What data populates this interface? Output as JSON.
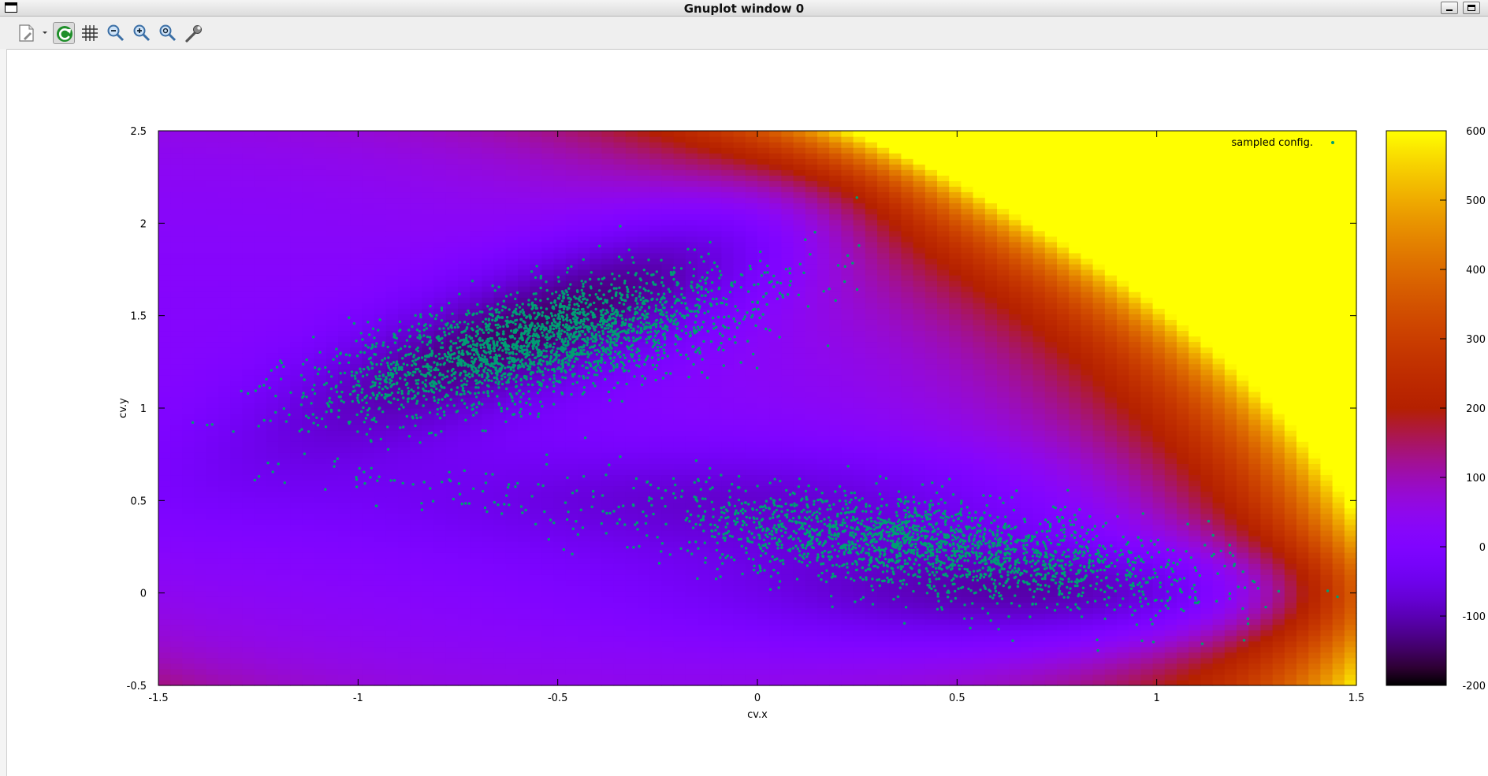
{
  "window": {
    "title": "Gnuplot window 0"
  },
  "toolbar": {
    "items": [
      {
        "name": "export-icon"
      },
      {
        "name": "replot-icon"
      },
      {
        "name": "grid-icon"
      },
      {
        "name": "zoom-out-icon"
      },
      {
        "name": "zoom-in-icon"
      },
      {
        "name": "zoom-autoscale-icon"
      },
      {
        "name": "settings-wrench-icon"
      }
    ]
  },
  "colors": {
    "point": "#009e73",
    "palette_note": "gnuplot default heat palette (black-red-orange-yellow-white)"
  },
  "chart_data": {
    "type": "heatmap",
    "overlay_type": "scatter",
    "xlabel": "cv.x",
    "ylabel": "cv.y",
    "xlim": [
      -1.5,
      1.5
    ],
    "ylim": [
      -0.5,
      2.5
    ],
    "xticks": [
      "-1.5",
      "-1",
      "-0.5",
      "0",
      "0.5",
      "1",
      "1.5"
    ],
    "yticks": [
      "-0.5",
      "0",
      "0.5",
      "1",
      "1.5",
      "2",
      "2.5"
    ],
    "colorbar": {
      "range": [
        -200,
        600
      ],
      "ticks": [
        "-200",
        "-100",
        "0",
        "100",
        "200",
        "300",
        "400",
        "500",
        "600"
      ]
    },
    "legend": {
      "label": "sampled config.",
      "position": "top-right"
    },
    "grid": false,
    "heatmap_resolution": [
      100,
      100
    ],
    "field": "Mueller-Brown-like potential energy surface with minima near (-0.55, 1.45), (0.62, 0.03) and (-0.05, 0.47)",
    "scatter_clusters": [
      {
        "center": [
          -0.55,
          1.35
        ],
        "spread": [
          0.3,
          0.13
        ],
        "rotation_deg": 30,
        "count": 2600
      },
      {
        "center": [
          0.42,
          0.25
        ],
        "spread": [
          0.35,
          0.12
        ],
        "rotation_deg": -17,
        "count": 2200
      },
      {
        "center": [
          -0.75,
          0.55
        ],
        "spread": [
          0.2,
          0.08
        ],
        "rotation_deg": -25,
        "count": 60
      }
    ]
  }
}
